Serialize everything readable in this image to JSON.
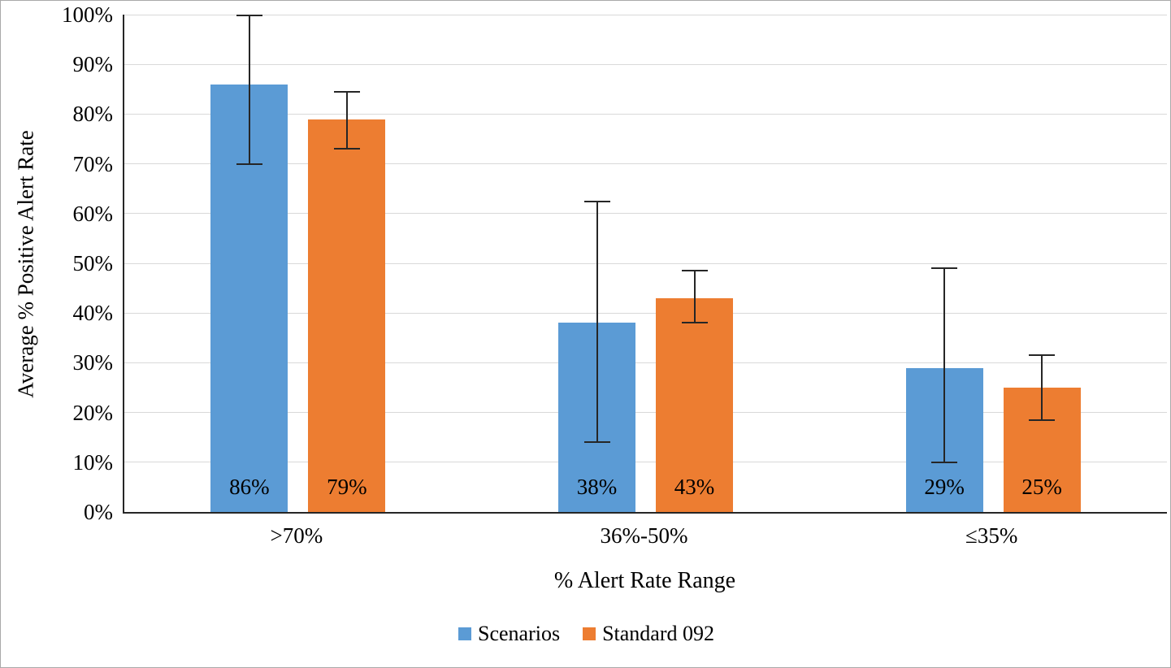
{
  "chart_data": {
    "type": "bar",
    "xlabel": "% Alert Rate Range",
    "ylabel": "Average % Positive Alert Rate",
    "ylim": [
      0,
      100
    ],
    "ytick_step": 10,
    "ytick_labels": [
      "0%",
      "10%",
      "20%",
      "30%",
      "40%",
      "50%",
      "60%",
      "70%",
      "80%",
      "90%",
      "100%"
    ],
    "grid": true,
    "legend_position": "bottom",
    "categories": [
      ">70%",
      "36%-50%",
      "≤35%"
    ],
    "series": [
      {
        "name": "Scenarios",
        "color": "#5B9BD5",
        "values": [
          86,
          38,
          29
        ],
        "value_labels": [
          "86%",
          "38%",
          "29%"
        ],
        "error_low": [
          70,
          14,
          10
        ],
        "error_high": [
          100,
          62.5,
          49
        ]
      },
      {
        "name": "Standard 092",
        "color": "#ED7D31",
        "values": [
          79,
          43,
          25
        ],
        "value_labels": [
          "79%",
          "43%",
          "25%"
        ],
        "error_low": [
          73,
          38,
          18.5
        ],
        "error_high": [
          84.5,
          48.5,
          31.5
        ]
      }
    ]
  }
}
